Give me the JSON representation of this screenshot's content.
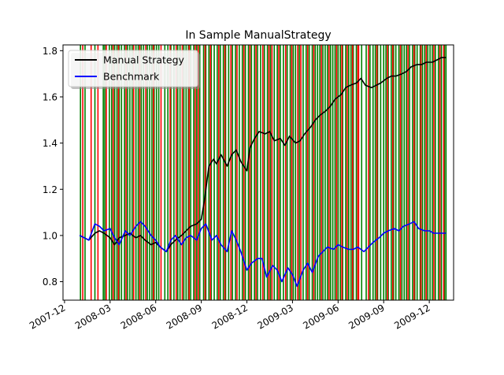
{
  "chart_data": {
    "type": "line",
    "title": "In Sample ManualStrategy",
    "xlabel": "",
    "ylabel": "",
    "x_ticks": [
      "2007-12",
      "2008-03",
      "2008-06",
      "2008-09",
      "2008-12",
      "2009-03",
      "2009-06",
      "2009-09",
      "2009-12"
    ],
    "x_tick_months": [
      0,
      3,
      6,
      9,
      12,
      15,
      18,
      21,
      24
    ],
    "xlim_months": [
      -0.1,
      25.6
    ],
    "y_ticks": [
      "0.8",
      "1.0",
      "1.2",
      "1.4",
      "1.6",
      "1.8"
    ],
    "ylim": [
      0.72,
      1.825
    ],
    "legend": {
      "position": "top-left",
      "entries": [
        "Manual Strategy",
        "Benchmark"
      ]
    },
    "colors": {
      "manual": "#000000",
      "benchmark": "#0000ff",
      "long_signal": "#008000",
      "short_signal": "#ff0000"
    },
    "series": [
      {
        "name": "Manual Strategy",
        "x_months": [
          1.0,
          1.3,
          1.6,
          2.0,
          2.3,
          2.6,
          3.0,
          3.3,
          3.6,
          4.0,
          4.3,
          4.7,
          5.0,
          5.3,
          5.7,
          6.0,
          6.3,
          6.7,
          7.0,
          7.3,
          7.7,
          8.0,
          8.3,
          8.7,
          9.0,
          9.2,
          9.5,
          9.8,
          10.0,
          10.3,
          10.7,
          11.0,
          11.3,
          11.6,
          12.0,
          12.2,
          12.5,
          12.8,
          13.2,
          13.5,
          13.8,
          14.2,
          14.5,
          14.8,
          15.2,
          15.5,
          15.8,
          16.2,
          16.5,
          16.8,
          17.2,
          17.5,
          17.8,
          18.2,
          18.5,
          18.8,
          19.2,
          19.5,
          19.8,
          20.2,
          20.5,
          20.8,
          21.2,
          21.5,
          21.8,
          22.2,
          22.5,
          22.8,
          23.2,
          23.5,
          23.8,
          24.2,
          24.5,
          24.8,
          25.1
        ],
        "values": [
          1.0,
          0.99,
          0.98,
          1.01,
          1.02,
          1.01,
          0.99,
          0.96,
          0.99,
          1.0,
          1.01,
          0.99,
          1.0,
          0.98,
          0.96,
          0.97,
          0.95,
          0.93,
          0.96,
          0.98,
          1.0,
          1.02,
          1.04,
          1.05,
          1.07,
          1.15,
          1.3,
          1.33,
          1.31,
          1.35,
          1.3,
          1.35,
          1.37,
          1.32,
          1.28,
          1.38,
          1.42,
          1.45,
          1.44,
          1.45,
          1.41,
          1.42,
          1.39,
          1.43,
          1.4,
          1.41,
          1.44,
          1.47,
          1.5,
          1.52,
          1.54,
          1.56,
          1.59,
          1.61,
          1.64,
          1.65,
          1.66,
          1.68,
          1.65,
          1.64,
          1.65,
          1.66,
          1.68,
          1.69,
          1.69,
          1.7,
          1.71,
          1.73,
          1.74,
          1.74,
          1.75,
          1.75,
          1.76,
          1.77,
          1.77
        ]
      },
      {
        "name": "Benchmark",
        "x_months": [
          1.0,
          1.3,
          1.6,
          2.0,
          2.3,
          2.6,
          3.0,
          3.3,
          3.6,
          4.0,
          4.3,
          4.7,
          5.0,
          5.3,
          5.7,
          6.0,
          6.3,
          6.7,
          7.0,
          7.3,
          7.7,
          8.0,
          8.3,
          8.7,
          9.0,
          9.3,
          9.7,
          10.0,
          10.3,
          10.7,
          11.0,
          11.3,
          11.6,
          12.0,
          12.3,
          12.7,
          13.0,
          13.3,
          13.7,
          14.0,
          14.3,
          14.7,
          15.0,
          15.3,
          15.7,
          16.0,
          16.3,
          16.7,
          17.0,
          17.3,
          17.7,
          18.0,
          18.3,
          18.7,
          19.0,
          19.3,
          19.7,
          20.0,
          20.3,
          20.7,
          21.0,
          21.3,
          21.7,
          22.0,
          22.3,
          22.7,
          23.0,
          23.3,
          23.7,
          24.0,
          24.3,
          24.7,
          25.1
        ],
        "values": [
          1.0,
          0.99,
          0.98,
          1.05,
          1.04,
          1.02,
          1.03,
          0.99,
          0.96,
          1.02,
          1.0,
          1.04,
          1.06,
          1.04,
          1.0,
          0.98,
          0.95,
          0.93,
          0.98,
          1.0,
          0.96,
          0.99,
          1.0,
          0.98,
          1.03,
          1.05,
          0.98,
          1.0,
          0.96,
          0.93,
          1.02,
          0.98,
          0.93,
          0.85,
          0.88,
          0.9,
          0.9,
          0.82,
          0.87,
          0.85,
          0.8,
          0.86,
          0.83,
          0.78,
          0.85,
          0.88,
          0.84,
          0.91,
          0.93,
          0.95,
          0.94,
          0.96,
          0.95,
          0.94,
          0.94,
          0.95,
          0.93,
          0.95,
          0.97,
          0.99,
          1.01,
          1.02,
          1.03,
          1.02,
          1.04,
          1.05,
          1.06,
          1.03,
          1.02,
          1.02,
          1.01,
          1.01,
          1.01
        ]
      }
    ],
    "long_signals_months": [
      1.05,
      1.35,
      2.0,
      2.55,
      2.65,
      2.95,
      3.1,
      3.3,
      3.45,
      3.6,
      3.75,
      3.95,
      4.15,
      4.3,
      4.45,
      4.7,
      4.85,
      5.05,
      5.2,
      5.45,
      5.6,
      5.75,
      5.9,
      6.05,
      6.2,
      6.6,
      6.8,
      7.0,
      7.2,
      7.45,
      7.6,
      7.85,
      8.0,
      8.15,
      8.3,
      8.5,
      8.7,
      8.9,
      9.15,
      9.3,
      9.5,
      9.65,
      9.85,
      10.05,
      10.25,
      10.45,
      10.6,
      10.8,
      11.05,
      11.25,
      11.5,
      11.7,
      11.9,
      12.1,
      12.3,
      12.5,
      12.7,
      12.9,
      13.15,
      13.35,
      13.55,
      13.8,
      14.0,
      14.2,
      14.4,
      14.65,
      14.85,
      15.05,
      15.2,
      15.45,
      15.7,
      15.9,
      16.1,
      16.3,
      16.5,
      16.65,
      16.8,
      17.0,
      17.15,
      17.3,
      17.5,
      17.65,
      17.8,
      18.0,
      18.15,
      18.3,
      18.5,
      18.7,
      18.85,
      19.0,
      19.2,
      19.55,
      19.85,
      20.1,
      20.3,
      20.45,
      20.6,
      20.8,
      21.0,
      21.15,
      21.3,
      21.5,
      21.65,
      21.8,
      22.0,
      22.2,
      22.35,
      22.5,
      22.7,
      22.9,
      23.05,
      23.2,
      23.4,
      23.55,
      23.7,
      23.9,
      24.05,
      24.2,
      24.4,
      24.6,
      24.8,
      25.0,
      25.1
    ],
    "short_signals_months": [
      1.2,
      1.75,
      2.2,
      2.75,
      3.2,
      3.55,
      4.05,
      4.55,
      4.95,
      5.35,
      5.85,
      6.35,
      6.95,
      7.35,
      7.75,
      8.2,
      8.6,
      8.8,
      9.25,
      9.6,
      10.15,
      10.55,
      10.95,
      11.35,
      11.8,
      12.2,
      12.6,
      13.05,
      13.45,
      13.65,
      14.1,
      14.55,
      14.95,
      15.35,
      15.55,
      16.0,
      16.4,
      16.9,
      17.4,
      17.9,
      18.25,
      18.6,
      18.95,
      19.3,
      19.35,
      20.0,
      20.55,
      21.25,
      21.6,
      22.1,
      22.6,
      23.0,
      23.45,
      23.8,
      24.3,
      24.7,
      24.95
    ]
  }
}
